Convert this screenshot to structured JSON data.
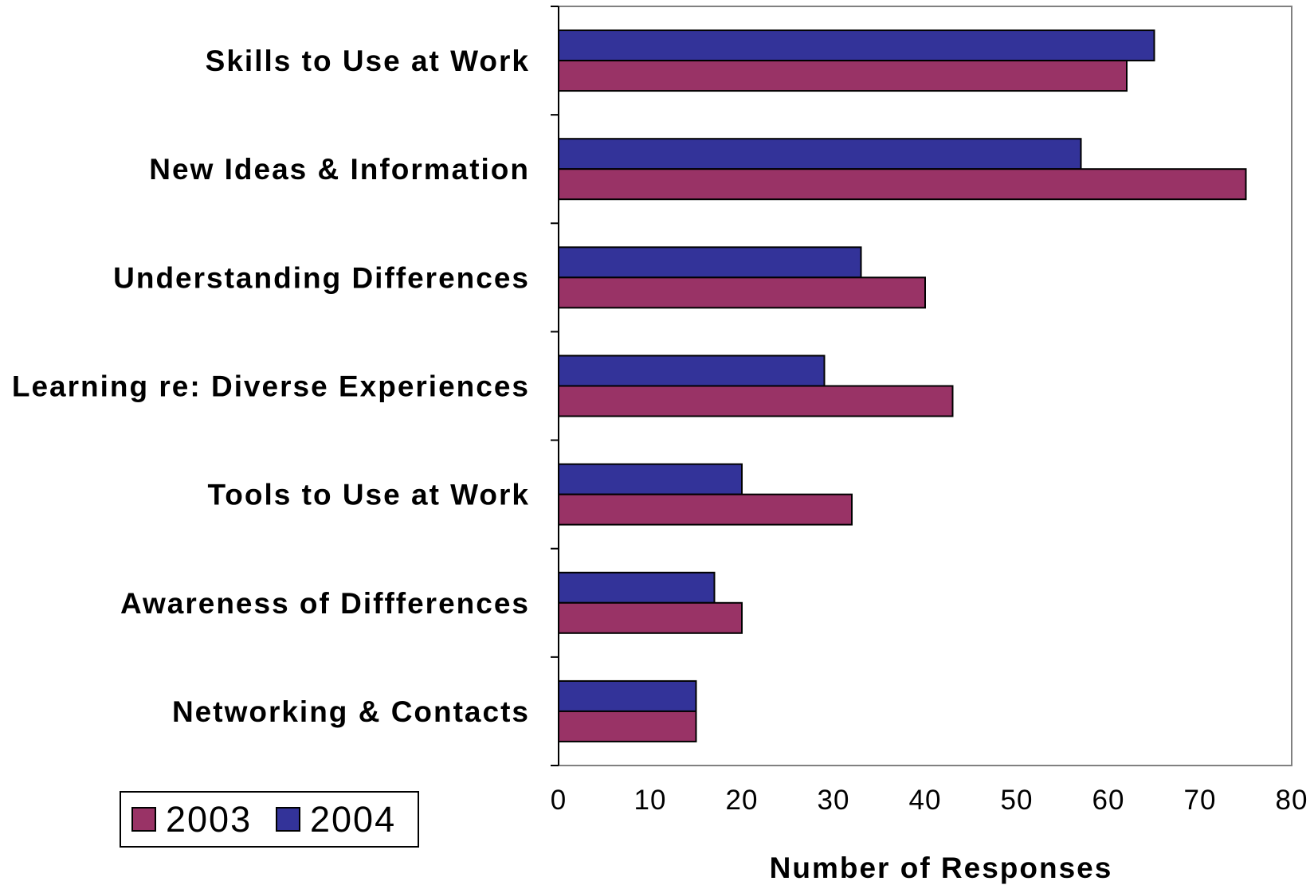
{
  "chart_data": {
    "type": "bar",
    "orientation": "horizontal",
    "categories": [
      "Skills to Use at Work",
      "New Ideas & Information",
      "Understanding Differences",
      "Learning re: Diverse Experiences",
      "Tools to Use at Work",
      "Awareness of Diffferences",
      "Networking & Contacts"
    ],
    "series": [
      {
        "name": "2003",
        "color": "#993366",
        "values": [
          62,
          75,
          40,
          43,
          32,
          20,
          15
        ]
      },
      {
        "name": "2004",
        "color": "#333399",
        "values": [
          65,
          57,
          33,
          29,
          20,
          17,
          15
        ]
      }
    ],
    "xlabel": "Number of Responses",
    "xlim": [
      0,
      80
    ],
    "xticks": [
      "0",
      "10",
      "20",
      "30",
      "40",
      "50",
      "60",
      "70",
      "80"
    ],
    "grid": false,
    "legend": {
      "placement": "bottom-left",
      "entries": [
        "2003",
        "2004"
      ]
    }
  }
}
